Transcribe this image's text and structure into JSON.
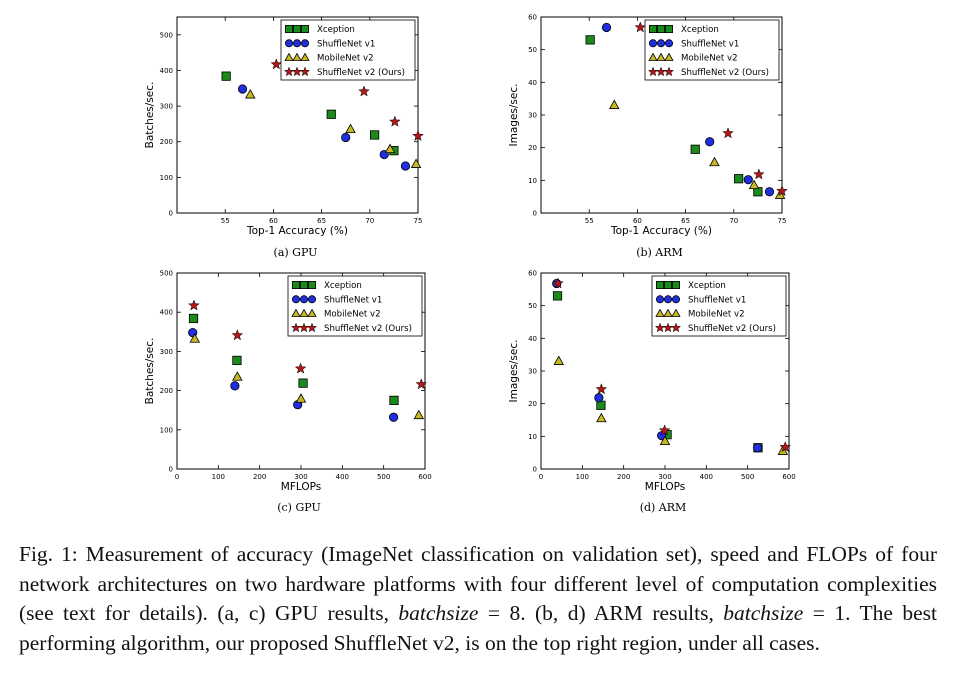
{
  "series_styles": [
    {
      "name": "Xception",
      "marker": "square",
      "color": "#1a8a1a"
    },
    {
      "name": "ShuffleNet v1",
      "marker": "circle",
      "color": "#1f2fe0"
    },
    {
      "name": "MobileNet v2",
      "marker": "triangle",
      "color": "#c8b820"
    },
    {
      "name": "ShuffleNet v2 (Ours)",
      "marker": "star",
      "color": "#b01818"
    }
  ],
  "chart_data": [
    {
      "type": "scatter",
      "subcaption": "(a) GPU",
      "xlabel": "Top-1 Accuracy (%)",
      "ylabel": "Batches/sec.",
      "xlim": [
        50,
        75
      ],
      "ylim": [
        0,
        550
      ],
      "xticks": [
        55,
        60,
        65,
        70,
        75
      ],
      "yticks": [
        0,
        100,
        200,
        300,
        400,
        500
      ],
      "legend": "top-right",
      "series": [
        {
          "name": "Xception",
          "points": [
            [
              55.1,
              384
            ],
            [
              66.0,
              277
            ],
            [
              70.5,
              219
            ],
            [
              72.5,
              175
            ]
          ]
        },
        {
          "name": "ShuffleNet v1",
          "points": [
            [
              56.8,
              348
            ],
            [
              67.5,
              212
            ],
            [
              71.5,
              164
            ],
            [
              73.7,
              132
            ]
          ]
        },
        {
          "name": "MobileNet v2",
          "points": [
            [
              57.6,
              332
            ],
            [
              68.0,
              235
            ],
            [
              72.1,
              179
            ],
            [
              74.8,
              137
            ]
          ]
        },
        {
          "name": "ShuffleNet v2 (Ours)",
          "points": [
            [
              60.3,
              417
            ],
            [
              69.4,
              341
            ],
            [
              72.6,
              256
            ],
            [
              75.0,
              216
            ]
          ]
        }
      ]
    },
    {
      "type": "scatter",
      "subcaption": "(b) ARM",
      "xlabel": "Top-1 Accuracy (%)",
      "ylabel": "Images/sec.",
      "xlim": [
        50,
        75
      ],
      "ylim": [
        0,
        60
      ],
      "xticks": [
        55,
        60,
        65,
        70,
        75
      ],
      "yticks": [
        0,
        10,
        20,
        30,
        40,
        50,
        60
      ],
      "legend": "top-right",
      "series": [
        {
          "name": "Xception",
          "points": [
            [
              55.1,
              53
            ],
            [
              66.0,
              19.5
            ],
            [
              70.5,
              10.5
            ],
            [
              72.5,
              6.5
            ]
          ]
        },
        {
          "name": "ShuffleNet v1",
          "points": [
            [
              56.8,
              56.8
            ],
            [
              67.5,
              21.8
            ],
            [
              71.5,
              10.2
            ],
            [
              73.7,
              6.5
            ]
          ]
        },
        {
          "name": "MobileNet v2",
          "points": [
            [
              57.6,
              33
            ],
            [
              68.0,
              15.5
            ],
            [
              72.1,
              8.5
            ],
            [
              74.8,
              5.5
            ]
          ]
        },
        {
          "name": "ShuffleNet v2 (Ours)",
          "points": [
            [
              60.3,
              56.8
            ],
            [
              69.4,
              24.4
            ],
            [
              72.6,
              11.8
            ],
            [
              75.0,
              6.7
            ]
          ]
        }
      ]
    },
    {
      "type": "scatter",
      "subcaption": "(c) GPU",
      "xlabel": "MFLOPs",
      "ylabel": "Batches/sec.",
      "xlim": [
        0,
        600
      ],
      "ylim": [
        0,
        500
      ],
      "xticks": [
        0,
        100,
        200,
        300,
        400,
        500,
        600
      ],
      "yticks": [
        0,
        100,
        200,
        300,
        400,
        500
      ],
      "legend": "top-right",
      "series": [
        {
          "name": "Xception",
          "points": [
            [
              40,
              384
            ],
            [
              145,
              277
            ],
            [
              305,
              219
            ],
            [
              525,
              175
            ]
          ]
        },
        {
          "name": "ShuffleNet v1",
          "points": [
            [
              38,
              348
            ],
            [
              140,
              212
            ],
            [
              292,
              164
            ],
            [
              524,
              132
            ]
          ]
        },
        {
          "name": "MobileNet v2",
          "points": [
            [
              43,
              332
            ],
            [
              146,
              235
            ],
            [
              300,
              179
            ],
            [
              585,
              137
            ]
          ]
        },
        {
          "name": "ShuffleNet v2 (Ours)",
          "points": [
            [
              41,
              417
            ],
            [
              146,
              341
            ],
            [
              299,
              256
            ],
            [
              591,
              216
            ]
          ]
        }
      ]
    },
    {
      "type": "scatter",
      "subcaption": "(d) ARM",
      "xlabel": "MFLOPs",
      "ylabel": "Images/sec.",
      "xlim": [
        0,
        600
      ],
      "ylim": [
        0,
        60
      ],
      "xticks": [
        0,
        100,
        200,
        300,
        400,
        500,
        600
      ],
      "yticks": [
        0,
        10,
        20,
        30,
        40,
        50,
        60
      ],
      "legend": "top-right",
      "series": [
        {
          "name": "Xception",
          "points": [
            [
              40,
              53
            ],
            [
              145,
              19.5
            ],
            [
              305,
              10.5
            ],
            [
              525,
              6.5
            ]
          ]
        },
        {
          "name": "ShuffleNet v1",
          "points": [
            [
              38,
              56.8
            ],
            [
              140,
              21.8
            ],
            [
              292,
              10.2
            ],
            [
              524,
              6.5
            ]
          ]
        },
        {
          "name": "MobileNet v2",
          "points": [
            [
              43,
              33
            ],
            [
              146,
              15.5
            ],
            [
              300,
              8.5
            ],
            [
              585,
              5.5
            ]
          ]
        },
        {
          "name": "ShuffleNet v2 (Ours)",
          "points": [
            [
              41,
              56.8
            ],
            [
              146,
              24.4
            ],
            [
              299,
              11.8
            ],
            [
              591,
              6.7
            ]
          ]
        }
      ]
    }
  ],
  "caption": {
    "label": "Fig. 1:",
    "text1": " Measurement of accuracy (ImageNet classification on validation set), speed and FLOPs of four network architectures on two hardware platforms with four different level of computation complexities (see text for details). (a, c) GPU results, ",
    "math1": "batchsize",
    "text2": " = 8. (b, d) ARM results, ",
    "math2": "batchsize",
    "text3": " = 1. The best performing algorithm, our proposed ShuffleNet v2, is on the top right region, under all cases."
  }
}
